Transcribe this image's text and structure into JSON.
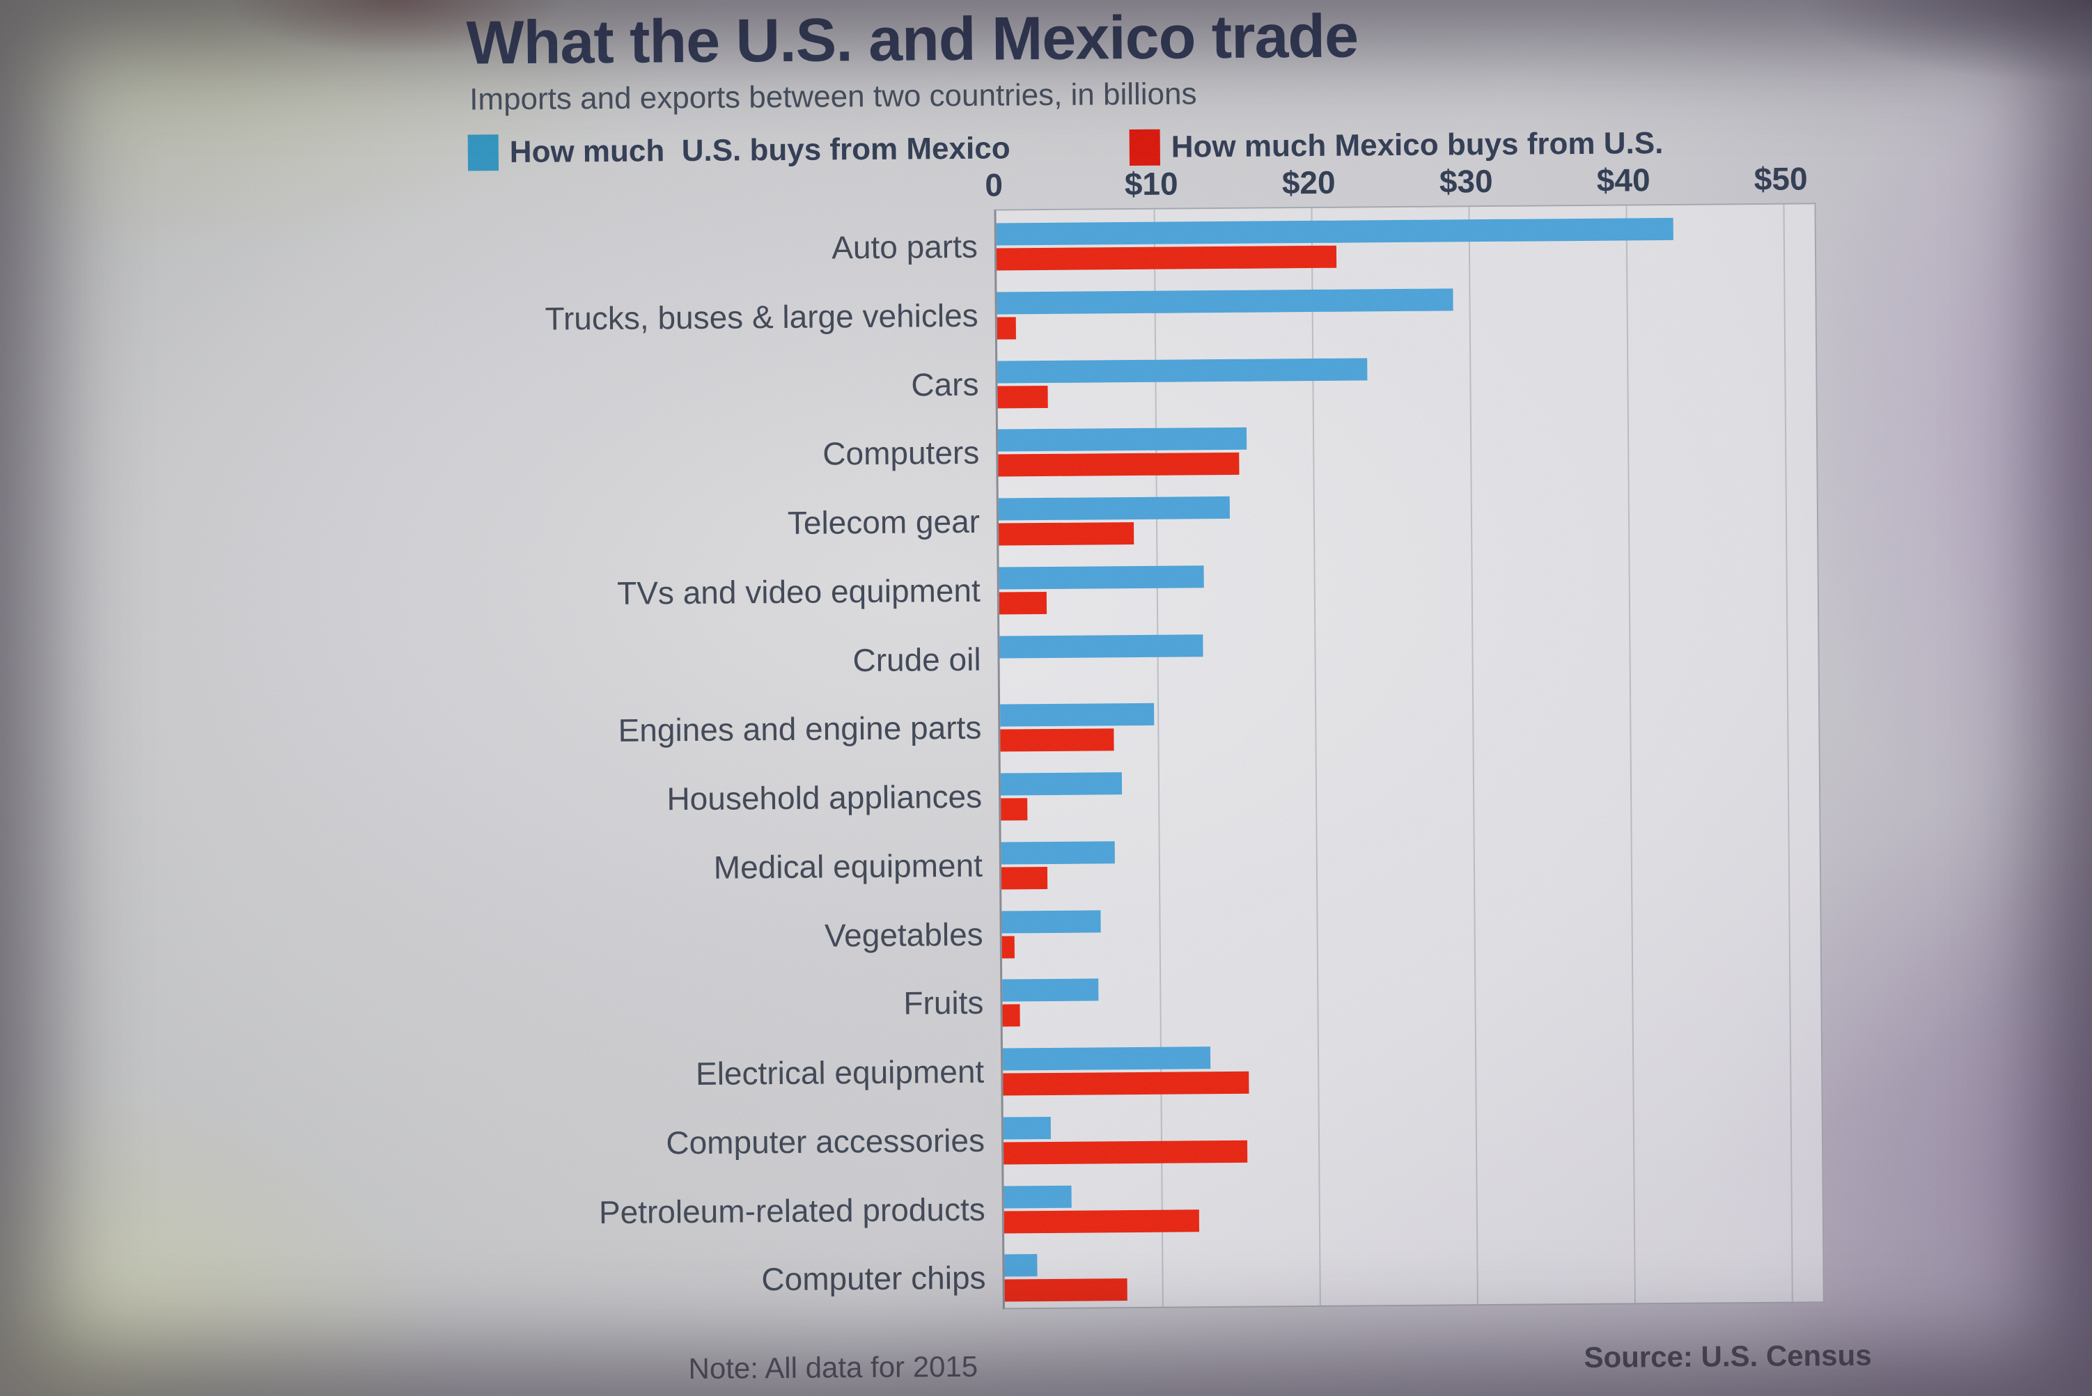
{
  "header": {
    "title": "What the U.S. and Mexico trade",
    "subtitle": "Imports and exports between two countries, in billions"
  },
  "legend": {
    "items": [
      {
        "label": "How much  U.S. buys from Mexico",
        "color": "#2f93bf"
      },
      {
        "label": "How much Mexico buys from U.S.",
        "color": "#da1408"
      }
    ]
  },
  "footer": {
    "note": "Note: All data for 2015",
    "source": "Source: U.S. Census"
  },
  "chart_data": {
    "type": "bar",
    "orientation": "horizontal",
    "unit": "USD billions",
    "title": "What the U.S. and Mexico trade",
    "subtitle": "Imports and exports between two countries, in billions",
    "categories": [
      "Auto parts",
      "Trucks, buses & large vehicles",
      "Cars",
      "Computers",
      "Telecom gear",
      "TVs and video equipment",
      "Crude oil",
      "Engines and engine parts",
      "Household appliances",
      "Medical equipment",
      "Vegetables",
      "Fruits",
      "Electrical equipment",
      "Computer accessories",
      "Petroleum-related products",
      "Computer chips"
    ],
    "series": [
      {
        "name": "How much U.S. buys from Mexico",
        "color": "#4aa2d9",
        "values": [
          43,
          29,
          23.5,
          15.8,
          14.7,
          13,
          12.9,
          9.8,
          7.7,
          7.2,
          6.3,
          6.1,
          13.2,
          3,
          4.3,
          2.1
        ]
      },
      {
        "name": "How much Mexico buys from U.S.",
        "color": "#e8220e",
        "values": [
          21.6,
          1.2,
          3.2,
          15.3,
          8.6,
          3,
          0,
          7.2,
          1.7,
          2.9,
          0.8,
          1.1,
          15.6,
          15.5,
          12.4,
          7.8
        ]
      }
    ],
    "xticks": [
      "0",
      "$10",
      "$20",
      "$30",
      "$40",
      "$50"
    ],
    "xlim": [
      0,
      52
    ],
    "grid": "vertical",
    "legend_position": "top",
    "note": "Note: All data for 2015",
    "source": "Source: U.S. Census"
  }
}
